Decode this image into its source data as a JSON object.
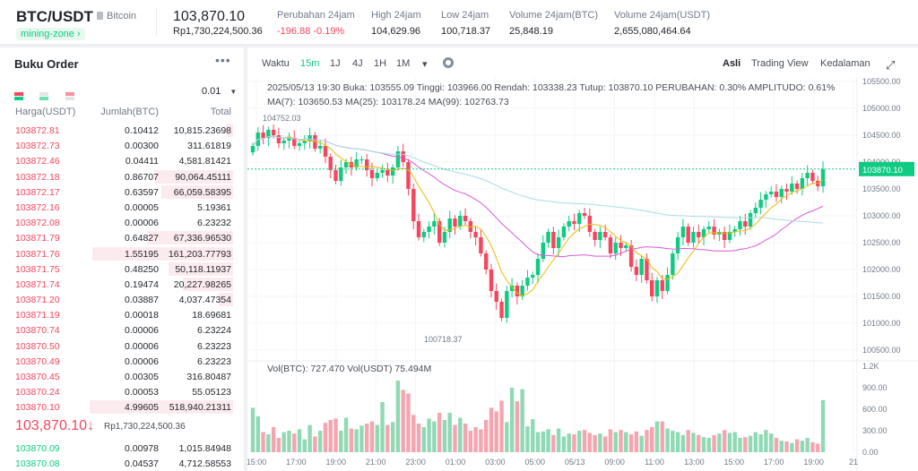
{
  "header": {
    "pair": "BTC/USDT",
    "coin": "Bitcoin",
    "tag": "mining-zone",
    "price": "103,870.10",
    "price_idr": "Rp1,730,224,500.36",
    "stats": [
      {
        "label": "Perubahan 24jam",
        "value": "-196.88 -0.19%",
        "tone": "red"
      },
      {
        "label": "High 24jam",
        "value": "104,629.96"
      },
      {
        "label": "Low 24jam",
        "value": "100,718.37"
      },
      {
        "label": "Volume 24jam(BTC)",
        "value": "25,848.19"
      },
      {
        "label": "Volume 24jam(USDT)",
        "value": "2,655,080,464.64"
      }
    ]
  },
  "orderbook": {
    "title": "Buku Order",
    "precision": "0.01",
    "col_price": "Harga(USDT)",
    "col_qty": "Jumlah(BTC)",
    "col_total": "Total",
    "asks": [
      [
        "103872.81",
        "0.10412",
        "10,815.23698",
        0.05
      ],
      [
        "103872.73",
        "0.00300",
        "311.61819",
        0
      ],
      [
        "103872.46",
        "0.04411",
        "4,581.81421",
        0
      ],
      [
        "103872.18",
        "0.86707",
        "90,064.45111",
        0.55
      ],
      [
        "103872.17",
        "0.63597",
        "66,059.58395",
        0.5
      ],
      [
        "103872.16",
        "0.00005",
        "5.19361",
        0
      ],
      [
        "103872.08",
        "0.00006",
        "6.23232",
        0
      ],
      [
        "103871.79",
        "0.64827",
        "67,336.96530",
        0.6
      ],
      [
        "103871.76",
        "1.55195",
        "161,203.77793",
        0.98
      ],
      [
        "103871.75",
        "0.48250",
        "50,118.11937",
        0.45
      ],
      [
        "103871.74",
        "0.19474",
        "20,227.98265",
        0.35
      ],
      [
        "103871.20",
        "0.03887",
        "4,037.47354",
        0.1
      ],
      [
        "103871.19",
        "0.00018",
        "18.69681",
        0
      ],
      [
        "103870.74",
        "0.00006",
        "6.23224",
        0
      ],
      [
        "103870.50",
        "0.00006",
        "6.23223",
        0
      ],
      [
        "103870.49",
        "0.00006",
        "6.23223",
        0
      ],
      [
        "103870.45",
        "0.00305",
        "316.80487",
        0
      ],
      [
        "103870.24",
        "0.00053",
        "55.05123",
        0
      ],
      [
        "103870.10",
        "4.99605",
        "518,940.21311",
        1.0
      ]
    ],
    "mid_price": "103,870.10",
    "mid_arrow": "↓",
    "mid_idr": "Rp1,730,224,500.36",
    "bids": [
      [
        "103870.09",
        "0.00978",
        "1,015.84948"
      ],
      [
        "103870.08",
        "0.04537",
        "4,712.58553"
      ]
    ]
  },
  "toolbar": {
    "items": [
      "Waktu",
      "15m",
      "1J",
      "4J",
      "1H",
      "1M",
      "▾"
    ],
    "active": "15m",
    "views": [
      "Asli",
      "Trading View",
      "Kedalaman"
    ],
    "active_view": "Asli"
  },
  "chart_info": {
    "ohlc_line": "2025/05/13 19:30 Buka: 103555.09 Tinggi: 103966.00 Rendah: 103338.23 Tutup: 103870.10 PERUBAHAN: 0.30% AMPLITUDO: 0.61%",
    "ma_line": "MA(7): 103650.53  MA(25): 103178.24  MA(99): 102763.73",
    "vol_line": "Vol(BTC): 727.470  Vol(USDT) 75.494M"
  },
  "chart_data": {
    "type": "candlestick",
    "current_price": "103870.10",
    "max_label": "104752.03",
    "min_label": "100718.37",
    "y_ticks": [
      "105500.00",
      "105000.00",
      "104500.00",
      "104000.00",
      "103500.00",
      "103000.00",
      "102500.00",
      "102000.00",
      "101500.00",
      "101000.00",
      "100500.00"
    ],
    "vol_ticks": [
      "1.2K",
      "900.00",
      "600.00",
      "300.00",
      "0.00"
    ],
    "x_ticks": [
      "15:00",
      "17:00",
      "19:00",
      "21:00",
      "23:00",
      "01:00",
      "03:00",
      "05:00",
      "05/13",
      "09:00",
      "11:00",
      "13:00",
      "15:00",
      "17:00",
      "19:00",
      "21"
    ],
    "closes": [
      104300,
      104550,
      104450,
      104600,
      104500,
      104350,
      104400,
      104450,
      104300,
      104350,
      104400,
      104500,
      104250,
      104300,
      104100,
      103850,
      103650,
      103900,
      104000,
      103900,
      104050,
      104050,
      103850,
      103700,
      103800,
      103850,
      103750,
      103900,
      104200,
      104000,
      103500,
      102900,
      102600,
      102700,
      102800,
      102900,
      102500,
      102700,
      102950,
      102800,
      103000,
      102900,
      102700,
      102600,
      102300,
      102000,
      101600,
      101400,
      101100,
      101600,
      101700,
      101500,
      101700,
      101850,
      101900,
      102200,
      102500,
      102700,
      102400,
      102600,
      102800,
      102900,
      102850,
      103050,
      103000,
      102700,
      102550,
      102700,
      102600,
      102300,
      102500,
      102400,
      102450,
      102050,
      101900,
      102200,
      101800,
      101500,
      101800,
      101600,
      101900,
      102300,
      102600,
      102800,
      102500,
      102700,
      102600,
      102750,
      102800,
      102650,
      102700,
      102550,
      102700,
      102750,
      102900,
      102800,
      103050,
      103150,
      103300,
      103400,
      103450,
      103350,
      103500,
      103450,
      103600,
      103500,
      103700,
      103800,
      103650,
      103550,
      103870
    ],
    "volumes": [
      620,
      500,
      280,
      250,
      350,
      200,
      280,
      300,
      260,
      320,
      180,
      380,
      220,
      300,
      410,
      450,
      470,
      300,
      480,
      330,
      320,
      370,
      400,
      430,
      380,
      700,
      380,
      420,
      1000,
      870,
      820,
      520,
      400,
      350,
      470,
      430,
      550,
      450,
      550,
      380,
      480,
      400,
      300,
      350,
      320,
      450,
      620,
      570,
      720,
      420,
      900,
      710,
      880,
      360,
      460,
      280,
      290,
      320,
      240,
      330,
      220,
      260,
      250,
      300,
      310,
      270,
      240,
      260,
      220,
      320,
      280,
      310,
      280,
      250,
      290,
      230,
      310,
      350,
      430,
      430,
      330,
      300,
      280,
      240,
      310,
      270,
      240,
      210,
      200,
      240,
      260,
      310,
      270,
      280,
      200,
      210,
      230,
      280,
      250,
      310,
      260,
      200,
      160,
      150,
      130,
      180,
      160,
      200,
      140,
      120,
      727
    ],
    "volume_colors": "green-red by candle direction"
  }
}
